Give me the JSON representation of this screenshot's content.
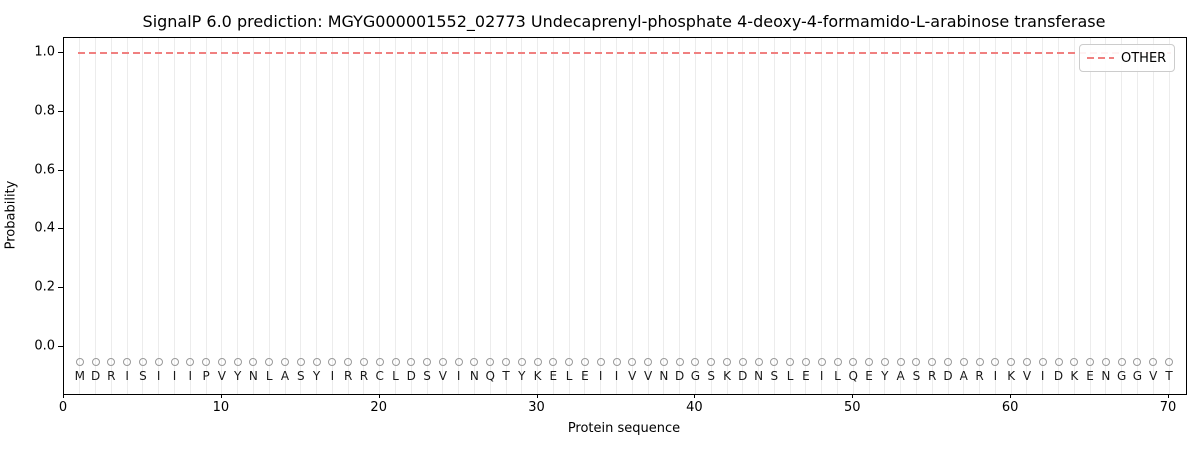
{
  "title": "SignalP 6.0 prediction: MGYG000001552_02773 Undecaprenyl-phosphate 4-deoxy-4-formamido-L-arabinose transferase",
  "axes": {
    "xlabel": "Protein sequence",
    "ylabel": "Probability",
    "xticks": [
      0,
      10,
      20,
      30,
      40,
      50,
      60,
      70
    ],
    "yticks": [
      "0.0",
      "0.2",
      "0.4",
      "0.6",
      "0.8",
      "1.0"
    ]
  },
  "legend": {
    "label": "OTHER",
    "line_style": "dashed",
    "position": "upper right"
  },
  "sequence": "MDRISIIIPVYNLASYIRRCLDSVINQTYKELEIIVVNDGSKDNSLEILQEYASRDARIKVIDKENGGVT",
  "colors": {
    "other_line": "#f08080",
    "gridline": "#ececec",
    "residue_circle": "#9a9a9a",
    "residue_letter": "#1a1a1a",
    "spine": "#000000"
  },
  "chart_data": {
    "type": "line",
    "title": "SignalP 6.0 prediction: MGYG000001552_02773 Undecaprenyl-phosphate 4-deoxy-4-formamido-L-arabinose transferase",
    "xlabel": "Protein sequence",
    "ylabel": "Probability",
    "xlim": [
      0,
      71
    ],
    "ylim": [
      -0.16,
      1.05
    ],
    "xticks": [
      0,
      10,
      20,
      30,
      40,
      50,
      60,
      70
    ],
    "yticks": [
      0.0,
      0.2,
      0.4,
      0.6,
      0.8,
      1.0
    ],
    "grid": "vertical gridline at every residue position 1-70",
    "legend_position": "upper right",
    "series": [
      {
        "name": "OTHER",
        "style": "dashed",
        "color": "#f08080",
        "x": [
          1,
          70
        ],
        "y": [
          1.0,
          1.0
        ],
        "note": "constant probability 1.0 across all 70 residues"
      }
    ],
    "residue_annotations": {
      "marker": "open-circle",
      "marker_color": "#9a9a9a",
      "marker_y": -0.04,
      "letters_y": -0.1,
      "sequence": "MDRISIIIPVYNLASYIRRCLDSVINQTYKELEIIVVNDGSKDNSLEILQEYASRDARIKVIDKENGGVT"
    }
  }
}
